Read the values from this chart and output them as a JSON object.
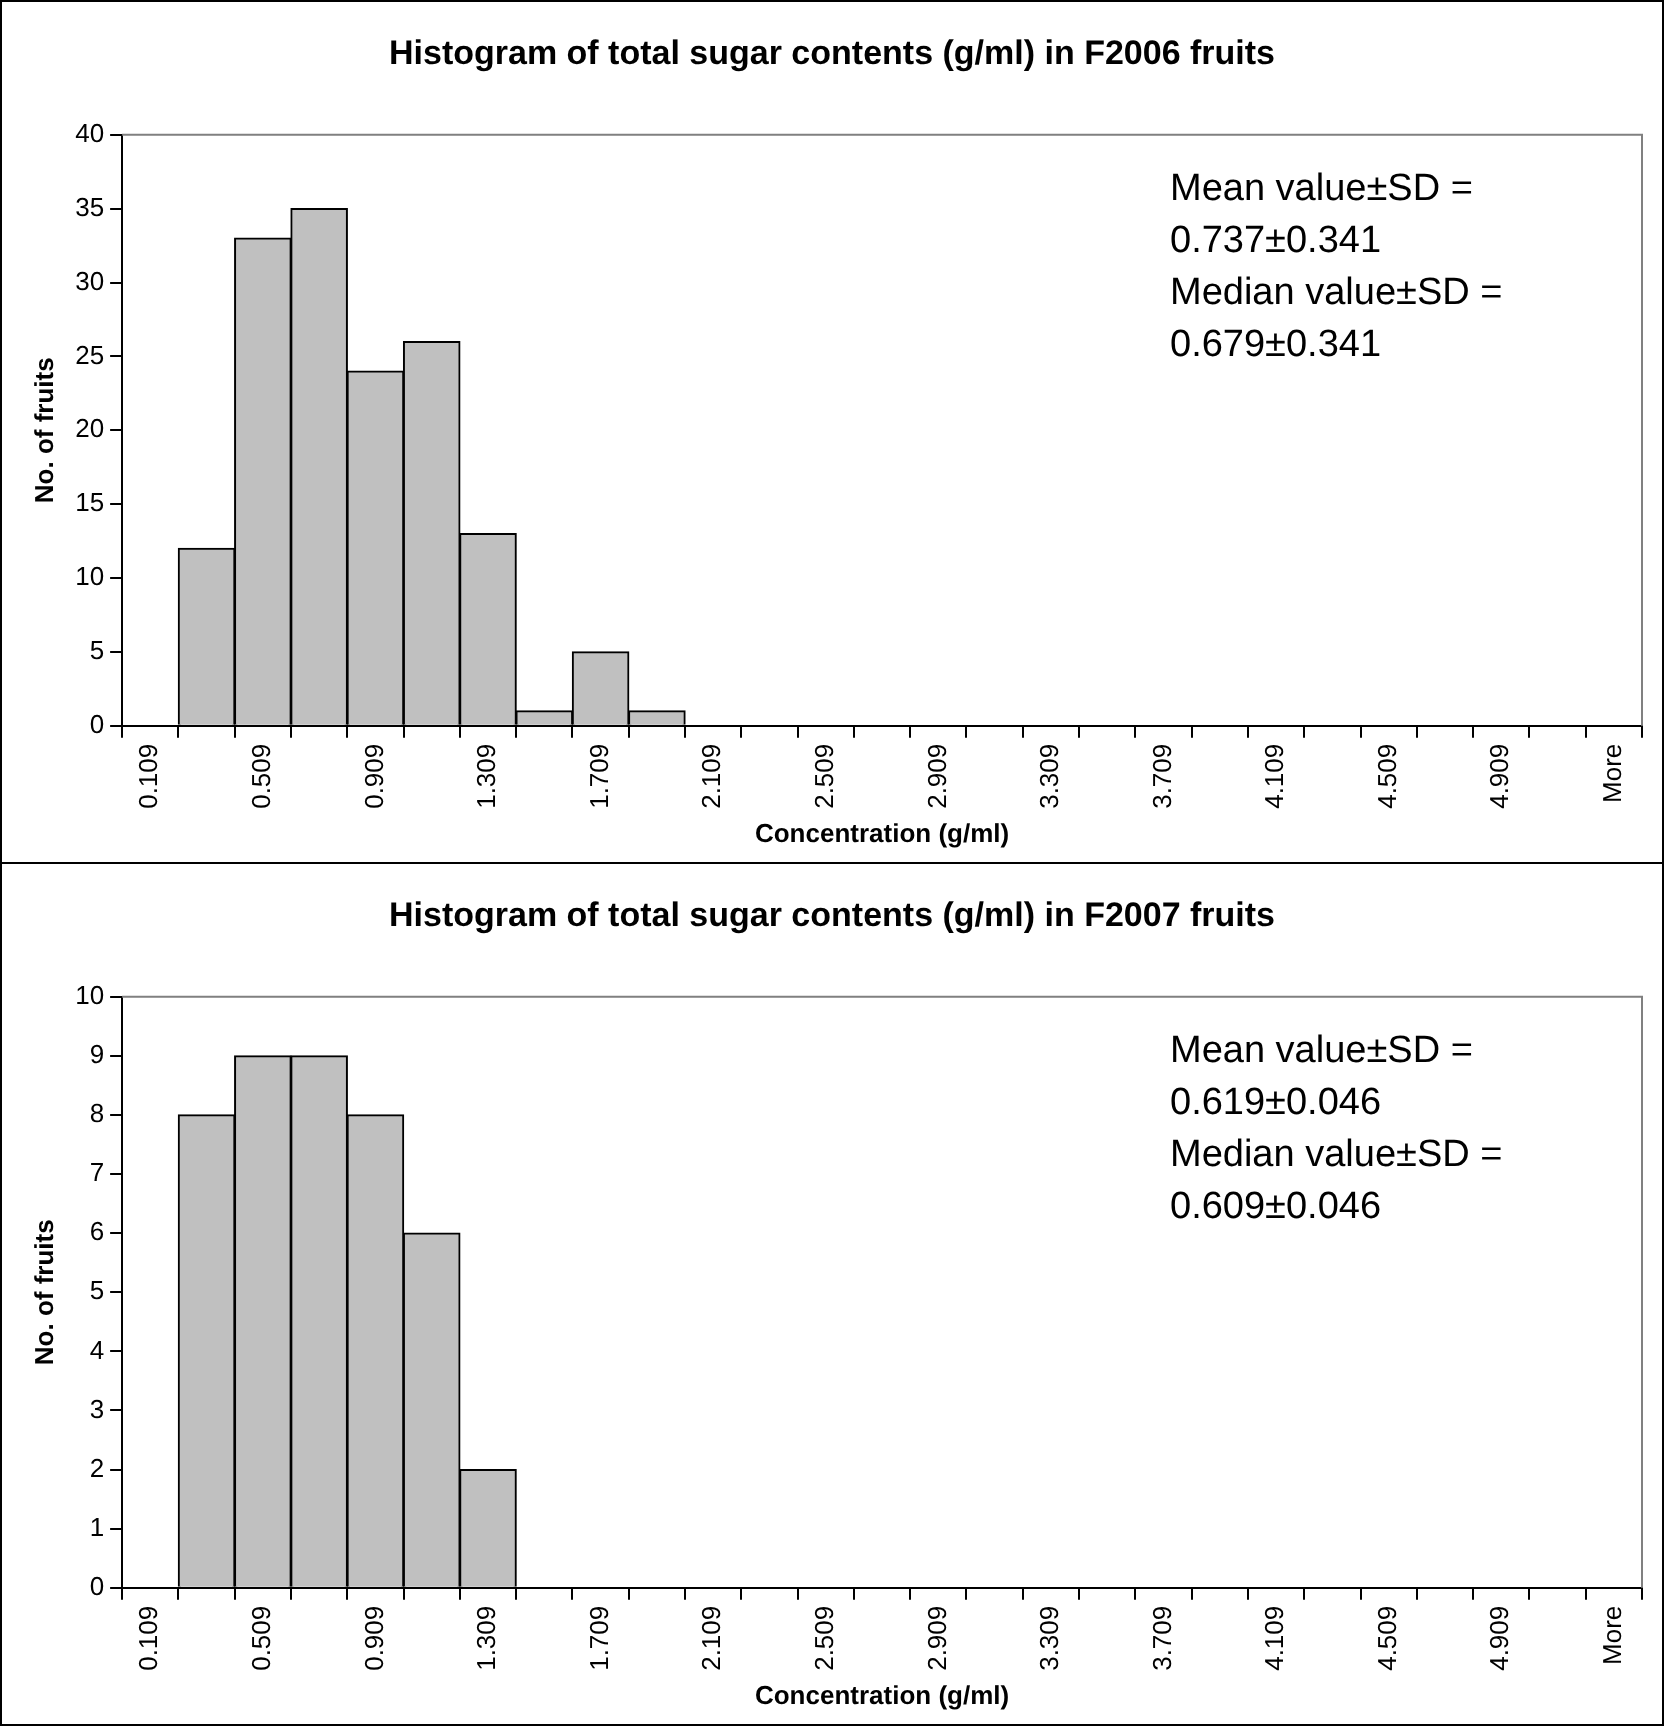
{
  "chart_data": [
    {
      "type": "bar",
      "title": "Histogram of total sugar contents (g/ml) in F2006 fruits",
      "xlabel": "Concentration (g/ml)",
      "ylabel": "No. of fruits",
      "categories": [
        "0.109",
        null,
        "0.509",
        null,
        "0.909",
        null,
        "1.309",
        null,
        "1.709",
        null,
        "2.109",
        null,
        "2.509",
        null,
        "2.909",
        null,
        "3.309",
        null,
        "3.709",
        null,
        "4.109",
        null,
        "4.509",
        null,
        "4.909",
        null,
        "More"
      ],
      "values": [
        0,
        12,
        33,
        35,
        24,
        26,
        13,
        1,
        5,
        1,
        0,
        0,
        0,
        0,
        0,
        0,
        0,
        0,
        0,
        0,
        0,
        0,
        0,
        0,
        0,
        0,
        0
      ],
      "color": "#c0c0c0",
      "ylim": [
        0,
        40
      ],
      "yticks": [
        0,
        5,
        10,
        15,
        20,
        25,
        30,
        35,
        40
      ],
      "grid": false,
      "legend": false,
      "annotations": [
        "Mean value±SD =",
        "0.737±0.341",
        "Median value±SD =",
        "0.679±0.341"
      ]
    },
    {
      "type": "bar",
      "title": "Histogram of total sugar contents (g/ml) in F2007 fruits",
      "xlabel": "Concentration (g/ml)",
      "ylabel": "No. of fruits",
      "categories": [
        "0.109",
        null,
        "0.509",
        null,
        "0.909",
        null,
        "1.309",
        null,
        "1.709",
        null,
        "2.109",
        null,
        "2.509",
        null,
        "2.909",
        null,
        "3.309",
        null,
        "3.709",
        null,
        "4.109",
        null,
        "4.509",
        null,
        "4.909",
        null,
        "More"
      ],
      "values": [
        0,
        8,
        9,
        9,
        8,
        6,
        2,
        0,
        0,
        0,
        0,
        0,
        0,
        0,
        0,
        0,
        0,
        0,
        0,
        0,
        0,
        0,
        0,
        0,
        0,
        0,
        0
      ],
      "color": "#c0c0c0",
      "ylim": [
        0,
        10
      ],
      "yticks": [
        0,
        1,
        2,
        3,
        4,
        5,
        6,
        7,
        8,
        9,
        10
      ],
      "grid": false,
      "legend": false,
      "annotations": [
        "Mean value±SD =",
        "0.619±0.046",
        "Median value±SD =",
        "0.609±0.046"
      ]
    }
  ]
}
